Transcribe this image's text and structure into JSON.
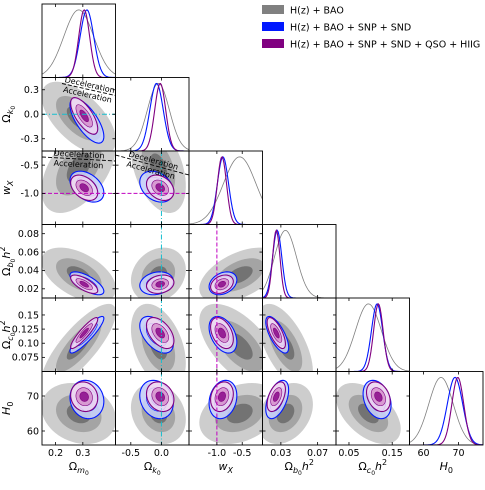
{
  "chart_data": {
    "type": "corner",
    "parameters": [
      {
        "symbol": "Ωm0",
        "label": "Ω_{m0}",
        "range": [
          0.15,
          0.42
        ],
        "ticks": [
          0.2,
          0.3
        ],
        "tick_labels": [
          "0.2",
          "0.3"
        ]
      },
      {
        "symbol": "Ωk0",
        "label": "Ω_{k0}",
        "range": [
          -0.75,
          0.45
        ],
        "ticks": [
          -0.5,
          0.0
        ],
        "tick_labels": [
          "-0.5",
          "0.0"
        ],
        "y_ticks": [
          -0.3,
          0.0,
          0.3
        ],
        "y_tick_labels": [
          "-0.3",
          "0.0",
          "0.3"
        ],
        "y_range": [
          -0.45,
          0.45
        ]
      },
      {
        "symbol": "wX",
        "label": "w_X",
        "range": [
          -1.55,
          -0.1
        ],
        "ticks": [
          -1.0,
          -0.5
        ],
        "tick_labels": [
          "-1.0",
          "-0.5"
        ],
        "y_ticks": [
          -0.5,
          -1.0
        ],
        "y_tick_labels": [
          "-0.5",
          "-1.0"
        ],
        "y_range": [
          -1.55,
          -0.25
        ]
      },
      {
        "symbol": "Ωb0h2",
        "label": "Ω_{b0}h^2",
        "range": [
          0.01,
          0.09
        ],
        "ticks": [
          0.03,
          0.07
        ],
        "tick_labels": [
          "0.03",
          "0.07"
        ],
        "y_ticks": [
          0.02,
          0.04,
          0.06,
          0.08
        ],
        "y_tick_labels": [
          "0.02",
          "0.04",
          "0.06",
          "0.08"
        ],
        "y_range": [
          0.01,
          0.09
        ]
      },
      {
        "symbol": "Ωc0h2",
        "label": "Ω_{c0}h^2",
        "range": [
          0.02,
          0.19
        ],
        "ticks": [
          0.05,
          0.15
        ],
        "tick_labels": [
          "0.05",
          "0.15"
        ],
        "y_ticks": [
          0.15,
          0.125,
          0.1,
          0.075
        ],
        "y_tick_labels": [
          "0.15",
          "0.125",
          "0.10",
          "0.075"
        ],
        "y_range": [
          0.05,
          0.18
        ]
      },
      {
        "symbol": "H0",
        "label": "H_0",
        "range": [
          56,
          77
        ],
        "ticks": [
          60,
          70
        ],
        "tick_labels": [
          "60",
          "70"
        ],
        "y_ticks": [
          70,
          60
        ],
        "y_tick_labels": [
          "70",
          "60"
        ],
        "y_range": [
          56,
          77
        ]
      }
    ],
    "series": [
      {
        "name": "H(z) + BAO",
        "color": "#808080",
        "fills": [
          "#c8c8c8",
          "#a0a0a0",
          "#6e6e6e"
        ],
        "means": [
          0.285,
          -0.05,
          -0.55,
          0.035,
          0.095,
          65.0
        ],
        "sigmas": [
          0.055,
          0.18,
          0.32,
          0.012,
          0.03,
          3.5
        ],
        "corr": {
          "1-0": -0.6,
          "2-0": 0.5,
          "2-1": -0.4,
          "3-0": -0.5,
          "3-1": 0.2,
          "3-2": 0.5,
          "4-0": 0.8,
          "4-1": -0.4,
          "4-2": -0.6,
          "4-3": -0.6,
          "5-0": -0.2,
          "5-1": -0.2,
          "5-2": 0.3,
          "5-3": 0.3,
          "5-4": -0.5
        }
      },
      {
        "name": "H(z) + BAO + SNP + SND",
        "color": "#0018ff",
        "fills": [
          "#c9d4ff",
          "#9aaeff",
          "#5a7cff"
        ],
        "means": [
          0.315,
          -0.08,
          -0.88,
          0.026,
          0.115,
          69.0
        ],
        "sigmas": [
          0.025,
          0.11,
          0.11,
          0.005,
          0.013,
          2.2
        ],
        "corr": {
          "1-0": -0.7,
          "2-0": -0.4,
          "2-1": -0.3,
          "3-0": -0.7,
          "3-1": 0.2,
          "3-2": 0.3,
          "4-0": 0.9,
          "4-1": -0.5,
          "4-2": -0.4,
          "4-3": -0.7,
          "5-0": -0.1,
          "5-1": -0.2,
          "5-2": 0.2,
          "5-3": 0.5,
          "5-4": -0.3
        }
      },
      {
        "name": "H(z) + BAO + SNP + SND + QSO + HIIG",
        "color": "#800080",
        "fills": [
          "#f3d8f0",
          "#d690cc",
          "#8b0a8b"
        ],
        "means": [
          0.305,
          -0.02,
          -0.9,
          0.025,
          0.118,
          69.8
        ],
        "sigmas": [
          0.02,
          0.09,
          0.09,
          0.004,
          0.011,
          1.7
        ],
        "corr": {
          "1-0": -0.7,
          "2-0": -0.4,
          "2-1": -0.3,
          "3-0": -0.7,
          "3-1": 0.2,
          "3-2": 0.3,
          "4-0": 0.9,
          "4-1": -0.5,
          "4-2": -0.4,
          "4-3": -0.7,
          "5-0": -0.1,
          "5-1": -0.2,
          "5-2": 0.2,
          "5-3": 0.5,
          "5-4": -0.3
        }
      }
    ],
    "reference_lines": [
      {
        "parameter": "Ωk0",
        "value": 0.0,
        "color": "#17becf",
        "style": "dash-dot"
      },
      {
        "parameter": "wX",
        "value": -1.0,
        "color": "#c000c0",
        "style": "dashed"
      }
    ],
    "annotations": [
      {
        "panel": "Ωk0-vs-Ωm0",
        "text_above": "Deceleration",
        "text_below": "Acceleration"
      },
      {
        "panel": "wX-vs-Ωm0",
        "text_above": "Deceleration",
        "text_below": "Acceleration"
      },
      {
        "panel": "wX-vs-Ωk0",
        "text_above": "Deceleration",
        "text_below": "Acceleration"
      }
    ],
    "legend_position": "top-right"
  }
}
